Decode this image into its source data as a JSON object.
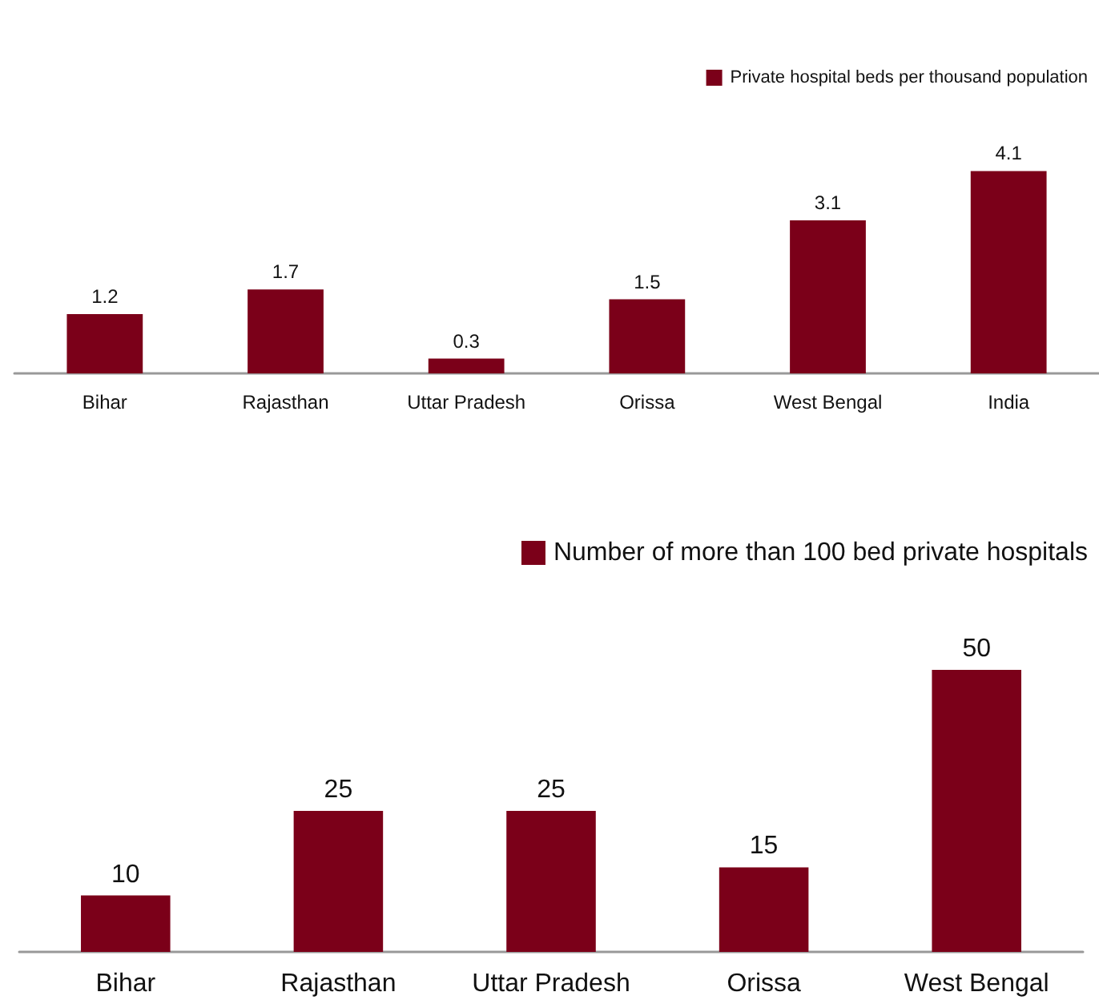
{
  "chart_data": [
    {
      "type": "bar",
      "categories": [
        "Bihar",
        "Rajasthan",
        "Uttar Pradesh",
        "Orissa",
        "West Bengal",
        "India"
      ],
      "series": [
        {
          "name": "Private hospital beds per thousand population",
          "color": "#7b0019",
          "values": [
            1.2,
            1.7,
            0.3,
            1.5,
            3.1,
            4.1
          ]
        }
      ],
      "data_labels": true,
      "legend": "top right"
    },
    {
      "type": "bar",
      "categories": [
        "Bihar",
        "Rajasthan",
        "Uttar Pradesh",
        "Orissa",
        "West Bengal"
      ],
      "series": [
        {
          "name": "Number of more than 100 bed private hospitals",
          "color": "#7b0019",
          "values": [
            10,
            25,
            25,
            15,
            50
          ]
        }
      ],
      "data_labels": true,
      "legend": "top right"
    }
  ]
}
